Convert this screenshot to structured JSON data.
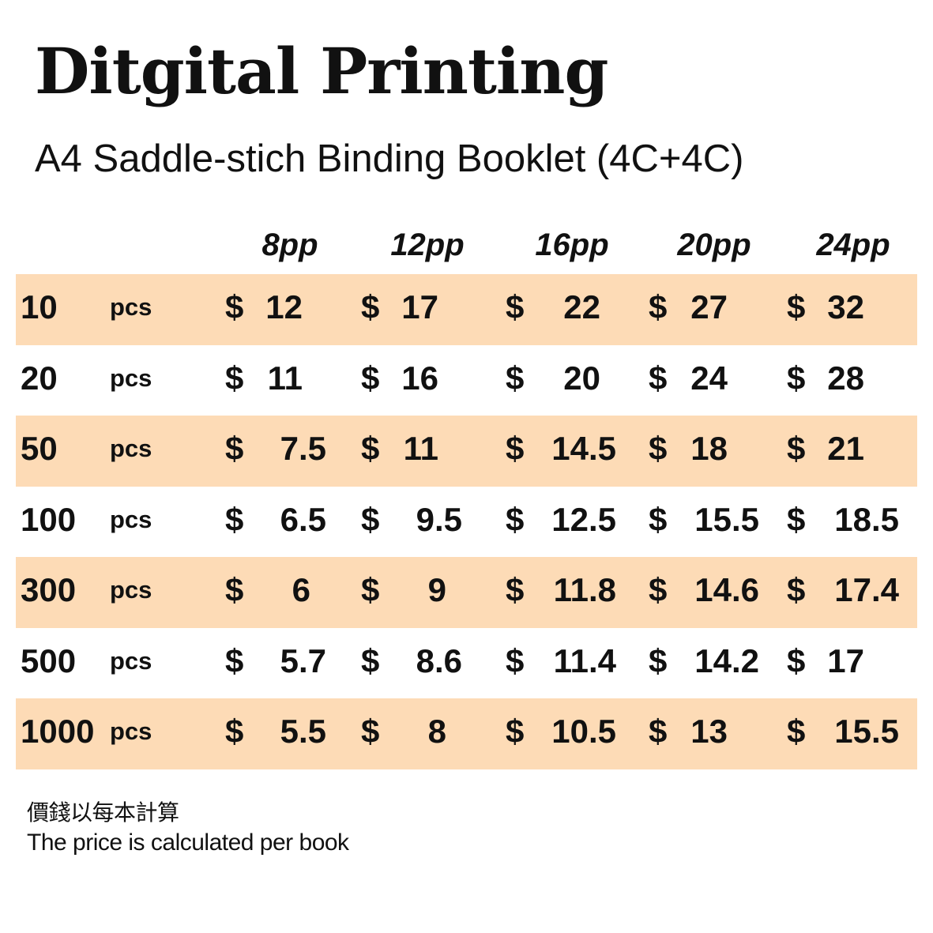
{
  "title": "Ditgital Printing",
  "subtitle": "A4 Saddle-stich Binding Booklet (4C+4C)",
  "columns": [
    "8pp",
    "12pp",
    "16pp",
    "20pp",
    "24pp"
  ],
  "currency_symbol": "$",
  "row_shade_color": "#fddbb6",
  "rows": [
    {
      "qty": "10",
      "unit": "pcs",
      "prices": [
        "12",
        "17",
        "22",
        "27",
        "32"
      ]
    },
    {
      "qty": "20",
      "unit": "pcs",
      "prices": [
        "11",
        "16",
        "20",
        "24",
        "28"
      ]
    },
    {
      "qty": "50",
      "unit": "pcs",
      "prices": [
        "7.5",
        "11",
        "14.5",
        "18",
        "21"
      ]
    },
    {
      "qty": "100",
      "unit": "pcs",
      "prices": [
        "6.5",
        "9.5",
        "12.5",
        "15.5",
        "18.5"
      ]
    },
    {
      "qty": "300",
      "unit": "pcs",
      "prices": [
        "6",
        "9",
        "11.8",
        "14.6",
        "17.4"
      ]
    },
    {
      "qty": "500",
      "unit": "pcs",
      "prices": [
        "5.7",
        "8.6",
        "11.4",
        "14.2",
        "17"
      ]
    },
    {
      "qty": "1000",
      "unit": "pcs",
      "prices": [
        "5.5",
        "8",
        "10.5",
        "13",
        "15.5"
      ]
    }
  ],
  "note": {
    "zh": "價錢以每本計算",
    "en": "The price is calculated per book"
  }
}
